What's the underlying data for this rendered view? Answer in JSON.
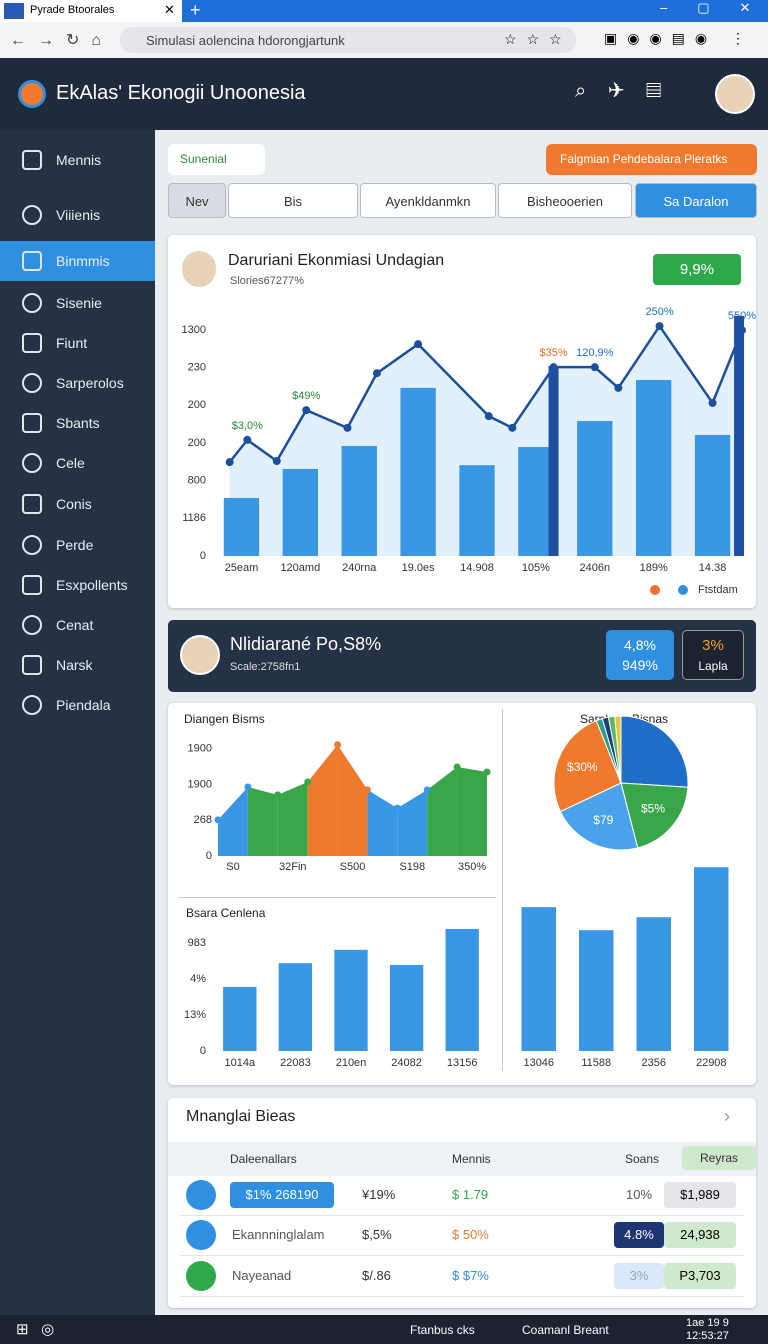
{
  "browser": {
    "tab": "Pyrade Btoorales",
    "url": "Simulasi aolencina hdorongjartunk"
  },
  "header": {
    "title": "EkAlas' Ekonogii Unoonesia"
  },
  "sidebar": {
    "items": [
      "Mennis",
      "Viiienis",
      "Binmmis",
      "Sisenie",
      "Fiunt",
      "Sarperolos",
      "Sbants",
      "Cele",
      "Conis",
      "Perde",
      "Esxpollents",
      "Cenat",
      "Narsk",
      "Piendala"
    ],
    "active": 2
  },
  "toolbar": {
    "search": "Sunenial",
    "action": "Falgmian Pehdebalara Pleratks"
  },
  "tabs": [
    "Nev",
    "Bis",
    "Ayenkldanmkn",
    "Bisheooerien",
    "Sa Daralon"
  ],
  "summary": {
    "title": "Daruriani Ekonmiasi Undagian",
    "subtitle": "Slories67277%",
    "badge": "9,9%"
  },
  "chart_data": [
    {
      "type": "bar",
      "categories": [
        "25eam",
        "120amd",
        "240rna",
        "19.0es",
        "14.908",
        "105%",
        "2406n",
        "189%",
        "14.38"
      ],
      "series": [
        {
          "values": [
            1.54,
            2.31,
            2.92,
            4.46,
            2.41,
            2.89,
            3.58,
            4.67,
            3.21
          ],
          "color": "#3a97e6"
        },
        {
          "type": "line",
          "x": [
            -0.2,
            0.1,
            0.6,
            1.1,
            1.8,
            2.3,
            3.0,
            4.2,
            4.6,
            5.3,
            6.0,
            6.4,
            7.1,
            8.0,
            8.5
          ],
          "values": [
            2.49,
            3.08,
            2.52,
            3.87,
            3.4,
            4.85,
            5.62,
            3.71,
            3.4,
            5.01,
            5.01,
            4.46,
            6.1,
            4.06,
            5.99
          ],
          "color": "#1d4f9c",
          "value_labels": [
            null,
            "$3,0%",
            null,
            "$49%",
            null,
            null,
            null,
            null,
            null,
            "$35%",
            "120,9%",
            null,
            "250%",
            null,
            "550%"
          ]
        },
        {
          "type": "bar",
          "x": [
            5.3,
            8.45
          ],
          "values": [
            5.04,
            6.37
          ],
          "color": "#1f4fa0"
        }
      ],
      "ylim": [
        0,
        6.5
      ],
      "yticks": [
        0,
        {
          "value": 1,
          "label": "1186"
        },
        {
          "value": 2,
          "label": "800"
        },
        {
          "value": 3,
          "label": "200"
        },
        {
          "value": 4,
          "label": "200"
        },
        {
          "value": 5,
          "label": "230"
        },
        {
          "value": 6,
          "label": "1300"
        }
      ],
      "legend": {
        "label": "Ftstdam",
        "colors": [
          "#f07030",
          "#2f8fe0"
        ]
      }
    },
    {
      "type": "area",
      "title": "Diangen Bisms",
      "categories": [
        "S0",
        null,
        "32Fin",
        null,
        "S500",
        null,
        "S198",
        null,
        "350%",
        null
      ],
      "values": [
        1.01,
        1.93,
        1.71,
        2.07,
        3.11,
        1.85,
        1.34,
        1.85,
        2.49,
        2.35
      ],
      "segment_colors": [
        "#3a97e6",
        "#3aa64a",
        "#3aa64a",
        "#ef7a2e",
        "#ef7a2e",
        "#3a97e6",
        "#3a97e6",
        "#3aa64a",
        "#3aa64a"
      ],
      "ylim": [
        0,
        3.3
      ],
      "yticks": [
        0,
        {
          "value": 1,
          "label": "268"
        },
        {
          "value": 2,
          "label": "1900"
        },
        {
          "value": 3,
          "label": "1900"
        }
      ]
    },
    {
      "type": "pie",
      "title": "Sarpham Bisnas",
      "values": [
        26,
        20,
        22,
        26,
        1.5,
        1.5,
        1.5,
        1.5
      ],
      "colors": [
        "#1f6fc9",
        "#3aa64a",
        "#4aa3ea",
        "#ef7a2e",
        "#2a9d8f",
        "#1d3f7a",
        "#5cb85c",
        "#e8c547"
      ],
      "value_labels": [
        null,
        "$5%",
        "$79",
        "$30%",
        null,
        null,
        null,
        null
      ]
    },
    {
      "type": "bar",
      "title": "Bsara Cenlena",
      "categories": [
        "1014a",
        "22083",
        "210en",
        "24082",
        "13156"
      ],
      "series": [
        {
          "values": [
            1.78,
            2.44,
            2.81,
            2.39,
            3.39
          ],
          "color": "#3a97e6"
        }
      ],
      "ylim": [
        0,
        3.5
      ],
      "yticks": [
        0,
        {
          "value": 1,
          "label": "13%"
        },
        {
          "value": 2,
          "label": "4%"
        },
        {
          "value": 3,
          "label": "983"
        }
      ]
    },
    {
      "type": "bar",
      "categories": [
        "13046",
        "11588",
        "2356",
        "22908"
      ],
      "series": [
        {
          "values": [
            4.0,
            3.36,
            3.72,
            5.11
          ],
          "color": "#3a97e6"
        }
      ],
      "ylim": [
        0,
        5.2
      ]
    }
  ],
  "profile": {
    "title": "Nlidiarané Po,S8%",
    "subtitle": "Scale:2758fn1",
    "badge_1": [
      "4,8%",
      "949%"
    ],
    "badge_2": [
      "3%",
      "Lapla"
    ]
  },
  "table": {
    "title": "Mnanglai Bieas",
    "header": [
      "Daleenallars",
      "Mennis",
      "Soans",
      "Reyras"
    ],
    "rows": [
      [
        "$1% 268190",
        "¥19%",
        "$ 1.79",
        "10%",
        "$1,989"
      ],
      [
        "Ekannninglalam",
        "$,5%",
        "$ 50%",
        "4.8%",
        "24,938"
      ],
      [
        "Nayeanad",
        "$/.86",
        "$ $7%",
        "3%",
        "P3,703"
      ]
    ]
  },
  "taskbar": {
    "items": [
      "Ftanbus cks",
      "Coamanl Breant"
    ],
    "date": "1ae 19 9",
    "time": "12:53:27"
  }
}
